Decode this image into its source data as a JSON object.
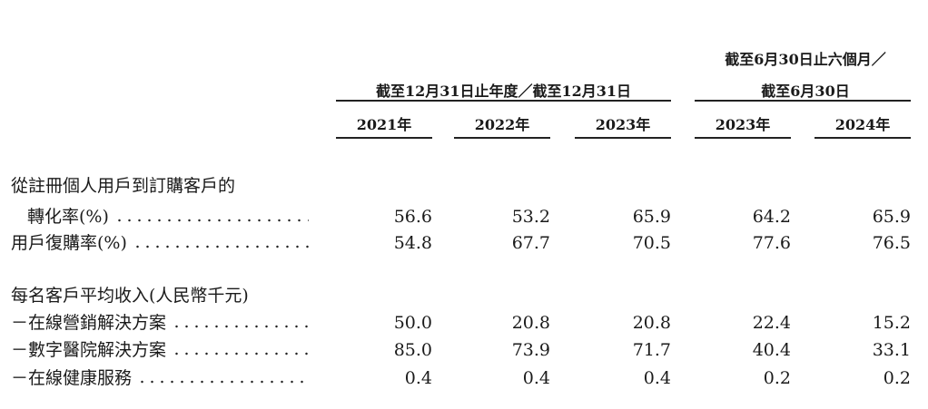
{
  "header": {
    "group1": "截至12月31日止年度／截至12月31日",
    "group2_line1": "截至6月30日止六個月／",
    "group2_line2": "截至6月30日",
    "columns": [
      "2021年",
      "2022年",
      "2023年",
      "2023年",
      "2024年"
    ]
  },
  "rows": [
    {
      "label": "從註冊個人用戶到訂購客戶的"
    },
    {
      "label": "轉化率(%)",
      "values": [
        "56.6",
        "53.2",
        "65.9",
        "64.2",
        "65.9"
      ]
    },
    {
      "label": "用戶復購率(%)",
      "values": [
        "54.8",
        "67.7",
        "70.5",
        "77.6",
        "76.5"
      ]
    },
    {
      "label": "每名客戶平均收入(人民幣千元)"
    },
    {
      "label": "－在線營銷解決方案",
      "values": [
        "50.0",
        "20.8",
        "20.8",
        "22.4",
        "15.2"
      ]
    },
    {
      "label": "－數字醫院解決方案",
      "values": [
        "85.0",
        "73.9",
        "71.7",
        "40.4",
        "33.1"
      ]
    },
    {
      "label": "－在線健康服務",
      "values": [
        "0.4",
        "0.4",
        "0.4",
        "0.2",
        "0.2"
      ]
    }
  ]
}
